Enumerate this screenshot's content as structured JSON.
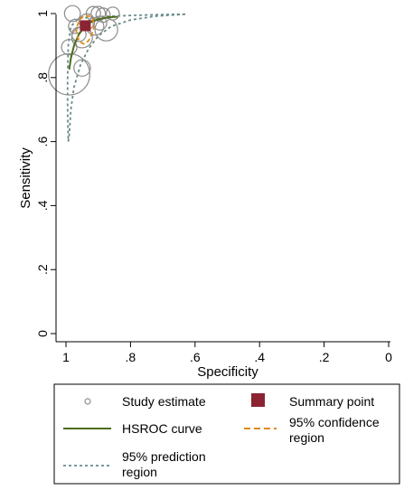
{
  "chart_data": {
    "type": "scatter",
    "title": "",
    "xlabel": "Specificity",
    "ylabel": "Sensitivity",
    "xlim": [
      1,
      0
    ],
    "ylim": [
      0,
      1
    ],
    "x_reversed": true,
    "x_ticks": [
      1,
      0.8,
      0.6,
      0.4,
      0.2,
      0
    ],
    "x_tick_labels": [
      "1",
      ".8",
      ".6",
      ".4",
      ".2",
      "0"
    ],
    "y_ticks": [
      0,
      0.2,
      0.4,
      0.6,
      0.8,
      1
    ],
    "y_tick_labels": [
      "0",
      ".2",
      ".4",
      ".6",
      ".8",
      "1"
    ],
    "grid": false,
    "legend_position": "bottom",
    "colors": {
      "study": "#8c8c8c",
      "summary": "#8b2332",
      "hsroc": "#4d6b1c",
      "confidence": "#e08a1a",
      "prediction": "#6b8a8a"
    },
    "studies": [
      {
        "spec": 0.99,
        "sens": 0.81,
        "weight": 10
      },
      {
        "spec": 0.95,
        "sens": 0.83,
        "weight": 1.6
      },
      {
        "spec": 0.99,
        "sens": 0.895,
        "weight": 1.4
      },
      {
        "spec": 0.95,
        "sens": 0.925,
        "weight": 2.5
      },
      {
        "spec": 0.96,
        "sens": 0.935,
        "weight": 1.2
      },
      {
        "spec": 0.97,
        "sens": 0.96,
        "weight": 1.2
      },
      {
        "spec": 0.98,
        "sens": 1.0,
        "weight": 1.5
      },
      {
        "spec": 0.935,
        "sens": 0.975,
        "weight": 1.4
      },
      {
        "spec": 0.91,
        "sens": 0.96,
        "weight": 1.8
      },
      {
        "spec": 0.895,
        "sens": 0.97,
        "weight": 1.1
      },
      {
        "spec": 0.915,
        "sens": 1.0,
        "weight": 1.2
      },
      {
        "spec": 0.9,
        "sens": 1.0,
        "weight": 1.2
      },
      {
        "spec": 0.885,
        "sens": 0.995,
        "weight": 1.2
      },
      {
        "spec": 0.855,
        "sens": 1.0,
        "weight": 1.0
      },
      {
        "spec": 0.875,
        "sens": 0.95,
        "weight": 3.0
      }
    ],
    "summary_point": {
      "spec": 0.94,
      "sens": 0.962
    },
    "hsroc_curve": [
      {
        "spec": 0.99,
        "sens": 0.825
      },
      {
        "spec": 0.985,
        "sens": 0.86
      },
      {
        "spec": 0.975,
        "sens": 0.9
      },
      {
        "spec": 0.96,
        "sens": 0.935
      },
      {
        "spec": 0.94,
        "sens": 0.962
      },
      {
        "spec": 0.92,
        "sens": 0.975
      },
      {
        "spec": 0.9,
        "sens": 0.982
      },
      {
        "spec": 0.87,
        "sens": 0.988
      },
      {
        "spec": 0.84,
        "sens": 0.99
      }
    ],
    "confidence_region": [
      {
        "spec": 0.965,
        "sens": 0.93
      },
      {
        "spec": 0.958,
        "sens": 0.912
      },
      {
        "spec": 0.945,
        "sens": 0.905
      },
      {
        "spec": 0.93,
        "sens": 0.915
      },
      {
        "spec": 0.918,
        "sens": 0.94
      },
      {
        "spec": 0.912,
        "sens": 0.965
      },
      {
        "spec": 0.918,
        "sens": 0.985
      },
      {
        "spec": 0.93,
        "sens": 0.993
      },
      {
        "spec": 0.945,
        "sens": 0.992
      },
      {
        "spec": 0.957,
        "sens": 0.982
      },
      {
        "spec": 0.965,
        "sens": 0.962
      },
      {
        "spec": 0.968,
        "sens": 0.945
      },
      {
        "spec": 0.965,
        "sens": 0.93
      }
    ],
    "prediction_region": [
      {
        "spec": 0.63,
        "sens": 0.998
      },
      {
        "spec": 0.7,
        "sens": 0.997
      },
      {
        "spec": 0.8,
        "sens": 0.994
      },
      {
        "spec": 0.9,
        "sens": 0.99
      },
      {
        "spec": 0.96,
        "sens": 0.985
      },
      {
        "spec": 0.985,
        "sens": 0.96
      },
      {
        "spec": 0.993,
        "sens": 0.9
      },
      {
        "spec": 0.995,
        "sens": 0.8
      },
      {
        "spec": 0.995,
        "sens": 0.7
      },
      {
        "spec": 0.993,
        "sens": 0.6
      },
      {
        "spec": 0.99,
        "sens": 0.62
      },
      {
        "spec": 0.985,
        "sens": 0.7
      },
      {
        "spec": 0.975,
        "sens": 0.77
      },
      {
        "spec": 0.955,
        "sens": 0.84
      },
      {
        "spec": 0.93,
        "sens": 0.89
      },
      {
        "spec": 0.9,
        "sens": 0.93
      },
      {
        "spec": 0.86,
        "sens": 0.96
      },
      {
        "spec": 0.8,
        "sens": 0.98
      },
      {
        "spec": 0.72,
        "sens": 0.992
      },
      {
        "spec": 0.63,
        "sens": 0.998
      }
    ]
  },
  "legend": {
    "study_estimate": "Study estimate",
    "summary_point": "Summary point",
    "hsroc_curve": "HSROC curve",
    "confidence_line1": "95% confidence",
    "confidence_line2": "region",
    "prediction_line1": "95% prediction",
    "prediction_line2": "region"
  }
}
